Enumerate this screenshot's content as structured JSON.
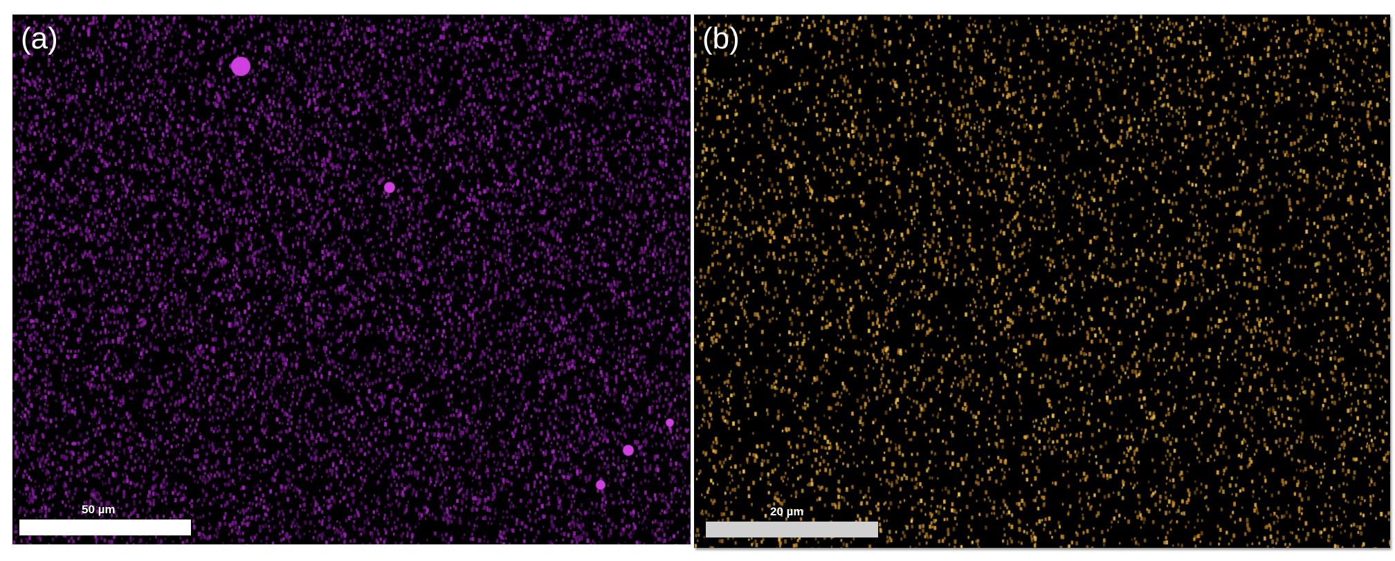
{
  "panels": [
    {
      "label": "(a)",
      "scale_bar": "50 µm",
      "map_color": "#b020c0"
    },
    {
      "label": "(b)",
      "scale_bar": "20 µm",
      "map_color": "#e0a030"
    }
  ]
}
